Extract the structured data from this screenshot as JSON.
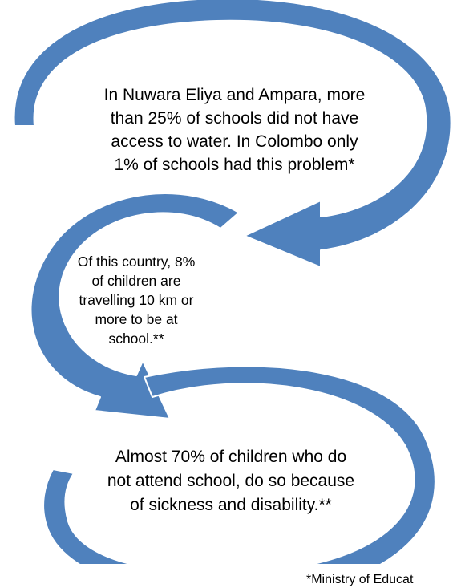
{
  "diagram": {
    "arrow_color": "#4F81BD",
    "arrow_outline": "#ffffff",
    "blocks": [
      {
        "text": "In Nuwara Eliya and Ampara, more\nthan 25% of schools did not have\naccess to water. In Colombo only\n1% of schools had this problem*"
      },
      {
        "text": "Of this country, 8%\nof children are\ntravelling 10 km or\nmore to be at\nschool.**"
      },
      {
        "text": "Almost 70% of children who do\nnot attend school, do so because\nof sickness and disability.**"
      }
    ],
    "footnote": "*Ministry of Educat"
  }
}
